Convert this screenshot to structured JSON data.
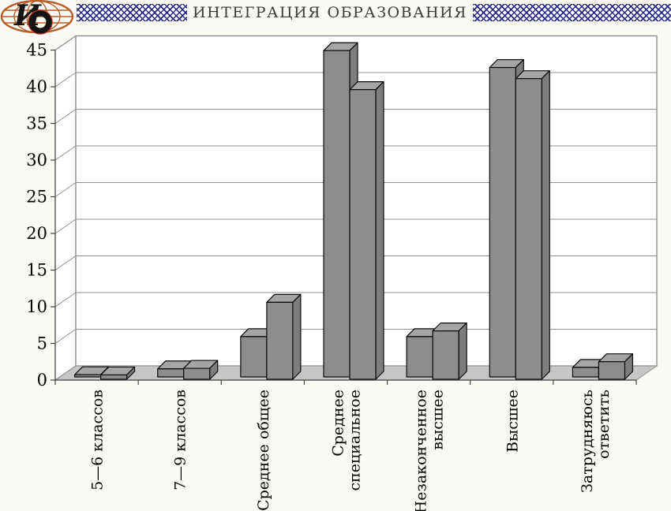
{
  "header": {
    "journal_title": "ИНТЕГРАЦИЯ ОБРАЗОВАНИЯ",
    "logo_monogram": "ИО",
    "band_color": "#27278a"
  },
  "chart_data": {
    "type": "bar",
    "style": "3d-clustered-column",
    "title": "",
    "xlabel": "",
    "ylabel": "",
    "categories": [
      "5—6 классов",
      "7—9 классов",
      "Среднее общее",
      "Среднее специальное",
      "Незаконченное высшее",
      "Высшее",
      "Затрудняюсь ответить"
    ],
    "category_lines": [
      [
        "5—6 классов"
      ],
      [
        "7—9 классов"
      ],
      [
        "Среднее общее"
      ],
      [
        "Среднее",
        "специальное"
      ],
      [
        "Незаконченное",
        "высшее"
      ],
      [
        "Высшее"
      ],
      [
        "Затрудняюсь",
        "ответить"
      ]
    ],
    "series": [
      {
        "name": "series-1",
        "values": [
          0.3,
          1.1,
          5.5,
          44.5,
          5.5,
          42.2,
          1.3
        ]
      },
      {
        "name": "series-2",
        "values": [
          0.6,
          1.5,
          10.5,
          39.5,
          6.6,
          41.0,
          2.4
        ]
      }
    ],
    "ylim": [
      0,
      45
    ],
    "yticks": [
      0,
      5,
      10,
      15,
      20,
      25,
      30,
      35,
      40,
      45
    ],
    "grid": true,
    "legend": false,
    "colors": {
      "bar_front": "#8d8d8d",
      "bar_top": "#a5a5a5",
      "bar_side": "#7d7d7d",
      "floor": "#c6c6c6",
      "wall": "#ffffff",
      "grid_line": "#8f8f8f",
      "axis_line": "#444444",
      "label": "#000000"
    }
  }
}
